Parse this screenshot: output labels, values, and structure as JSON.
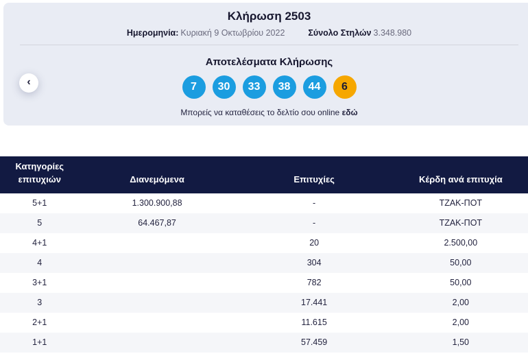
{
  "header": {
    "title": "Κλήρωση 2503",
    "date_label": "Ημερομηνία:",
    "date_value": "Κυριακή 9 Οκτωβρίου 2022",
    "columns_label": "Σύνολο Στηλών",
    "columns_value": "3.348.980"
  },
  "results": {
    "title": "Αποτελέσματα Κλήρωσης",
    "numbers": [
      "7",
      "30",
      "33",
      "38",
      "44"
    ],
    "bonus": "6",
    "back_icon": "chevron-left",
    "cta_text": "Μπορείς να καταθέσεις το δελτίο σου online",
    "cta_link": "εδώ"
  },
  "table": {
    "headers": [
      "Κατηγορίες επιτυχιών",
      "Διανεμόμενα",
      "Επιτυχίες",
      "Κέρδη ανά επιτυχία"
    ],
    "rows": [
      {
        "category": "5+1",
        "distributed": "1.300.900,88",
        "wins": "-",
        "prize": "ΤΖΑΚ-ΠΟΤ"
      },
      {
        "category": "5",
        "distributed": "64.467,87",
        "wins": "-",
        "prize": "ΤΖΑΚ-ΠΟΤ"
      },
      {
        "category": "4+1",
        "distributed": "",
        "wins": "20",
        "prize": "2.500,00"
      },
      {
        "category": "4",
        "distributed": "",
        "wins": "304",
        "prize": "50,00"
      },
      {
        "category": "3+1",
        "distributed": "",
        "wins": "782",
        "prize": "50,00"
      },
      {
        "category": "3",
        "distributed": "",
        "wins": "17.441",
        "prize": "2,00"
      },
      {
        "category": "2+1",
        "distributed": "",
        "wins": "11.615",
        "prize": "2,00"
      },
      {
        "category": "1+1",
        "distributed": "",
        "wins": "57.459",
        "prize": "1,50"
      }
    ]
  },
  "colors": {
    "ball_blue": "#1b9de0",
    "ball_bonus": "#f6a700",
    "header_navy": "#121a42",
    "panel_gray": "#e9ecf4",
    "row_alt": "#f5f6f9",
    "text_navy": "#23233f",
    "meta_gray": "#6b6b7e"
  }
}
